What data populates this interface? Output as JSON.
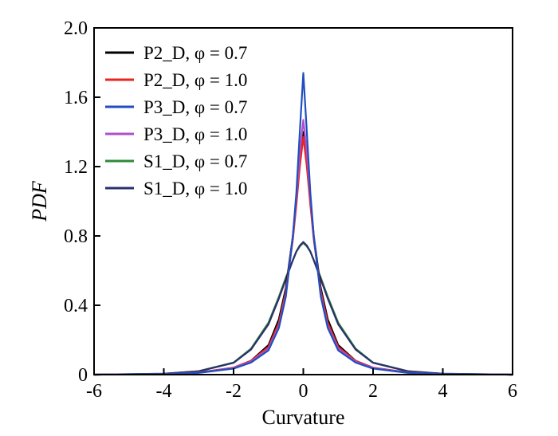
{
  "chart_data": {
    "type": "line",
    "xlabel": "Curvature",
    "ylabel": "PDF",
    "xlim": [
      -6,
      6
    ],
    "ylim": [
      0,
      2.0
    ],
    "xticks": [
      "-6",
      "-4",
      "-2",
      "0",
      "2",
      "4",
      "6"
    ],
    "yticks": [
      "0",
      "0.4",
      "0.8",
      "1.2",
      "1.6",
      "2.0"
    ],
    "grid": false,
    "legend_position": "top-left",
    "x": [
      -6,
      -4,
      -3,
      -2,
      -1.5,
      -1,
      -0.7,
      -0.5,
      -0.3,
      -0.2,
      -0.1,
      0,
      0.1,
      0.2,
      0.3,
      0.5,
      0.7,
      1,
      1.5,
      2,
      3,
      4,
      6
    ],
    "series": [
      {
        "name": "P2_D, φ = 0.7",
        "color": "#000000",
        "values": [
          0,
          0.003,
          0.012,
          0.04,
          0.08,
          0.17,
          0.32,
          0.5,
          0.8,
          1.0,
          1.22,
          1.4,
          1.22,
          1.0,
          0.8,
          0.5,
          0.32,
          0.17,
          0.08,
          0.04,
          0.012,
          0.003,
          0
        ]
      },
      {
        "name": "P2_D, φ = 1.0",
        "color": "#e8251f",
        "values": [
          0,
          0.003,
          0.012,
          0.04,
          0.08,
          0.16,
          0.3,
          0.48,
          0.78,
          0.98,
          1.2,
          1.37,
          1.2,
          0.98,
          0.78,
          0.48,
          0.3,
          0.16,
          0.08,
          0.04,
          0.012,
          0.003,
          0
        ]
      },
      {
        "name": "P3_D, φ = 0.7",
        "color": "#1f4fbf",
        "values": [
          0,
          0.003,
          0.01,
          0.035,
          0.07,
          0.14,
          0.27,
          0.45,
          0.8,
          1.05,
          1.4,
          1.74,
          1.4,
          1.05,
          0.8,
          0.45,
          0.27,
          0.14,
          0.07,
          0.035,
          0.01,
          0.003,
          0
        ]
      },
      {
        "name": "P3_D, φ = 1.0",
        "color": "#b34fc9",
        "values": [
          0,
          0.003,
          0.011,
          0.038,
          0.075,
          0.15,
          0.28,
          0.46,
          0.8,
          1.02,
          1.28,
          1.47,
          1.28,
          1.02,
          0.8,
          0.46,
          0.28,
          0.15,
          0.075,
          0.038,
          0.011,
          0.003,
          0
        ]
      },
      {
        "name": "S1_D, φ = 0.7",
        "color": "#2e8b3a",
        "values": [
          0,
          0.005,
          0.02,
          0.07,
          0.15,
          0.3,
          0.45,
          0.56,
          0.66,
          0.71,
          0.74,
          0.76,
          0.74,
          0.71,
          0.66,
          0.56,
          0.45,
          0.3,
          0.15,
          0.07,
          0.02,
          0.005,
          0
        ]
      },
      {
        "name": "S1_D, φ = 1.0",
        "color": "#2b2f6e",
        "values": [
          0,
          0.005,
          0.019,
          0.068,
          0.145,
          0.29,
          0.44,
          0.55,
          0.66,
          0.71,
          0.745,
          0.765,
          0.745,
          0.71,
          0.66,
          0.55,
          0.44,
          0.29,
          0.145,
          0.068,
          0.019,
          0.005,
          0
        ]
      }
    ]
  }
}
